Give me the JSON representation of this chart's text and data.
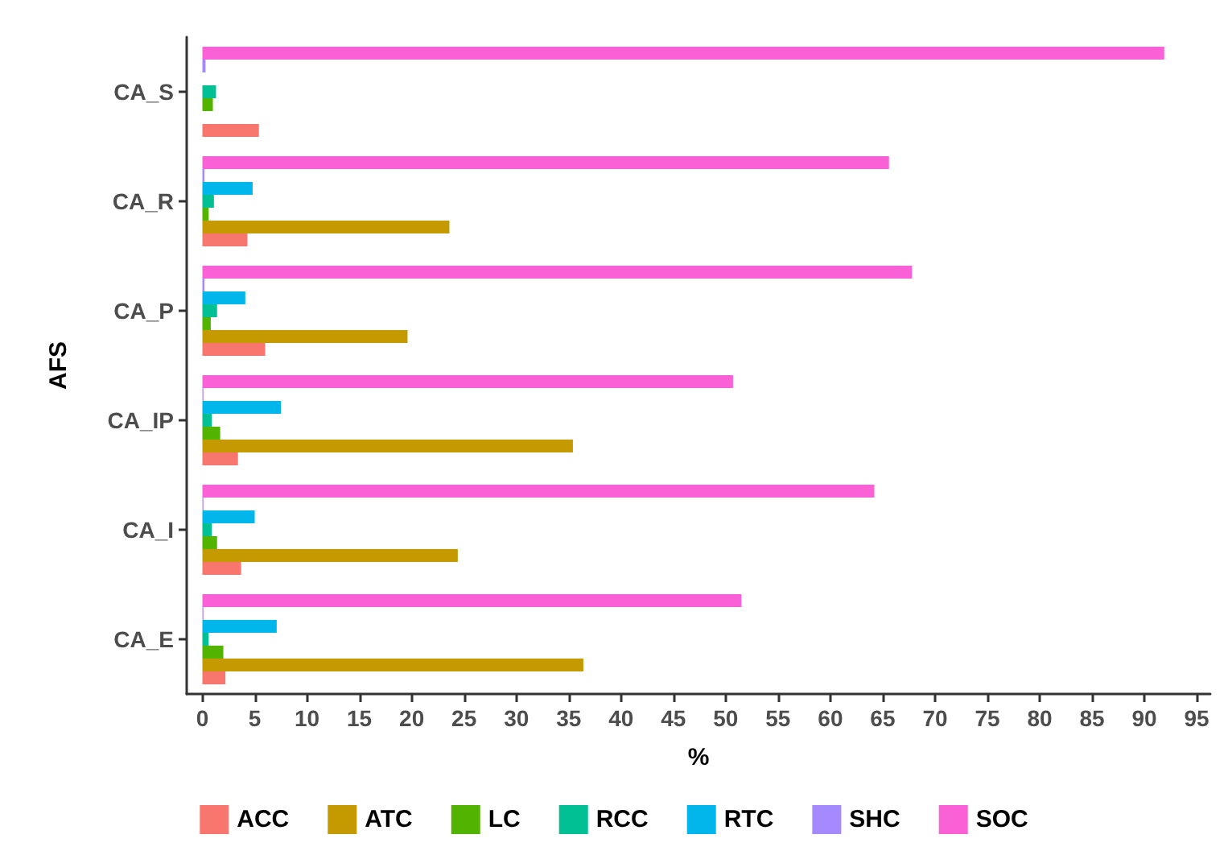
{
  "chart_data": {
    "type": "bar",
    "orientation": "horizontal",
    "xlabel": "%",
    "ylabel": "AFS",
    "categories": [
      "CA_S",
      "CA_R",
      "CA_P",
      "CA_IP",
      "CA_I",
      "CA_E"
    ],
    "series": [
      {
        "name": "ACC",
        "color": "#f8766d",
        "values": [
          5.4,
          4.3,
          6.0,
          3.4,
          3.7,
          2.2
        ]
      },
      {
        "name": "ATC",
        "color": "#c49a00",
        "values": [
          0,
          23.6,
          19.6,
          35.4,
          24.4,
          36.4
        ]
      },
      {
        "name": "LC",
        "color": "#53b400",
        "values": [
          1.0,
          0.6,
          0.8,
          1.7,
          1.4,
          2.0
        ]
      },
      {
        "name": "RCC",
        "color": "#00c094",
        "values": [
          1.3,
          1.1,
          1.4,
          0.9,
          0.9,
          0.6
        ]
      },
      {
        "name": "RTC",
        "color": "#00b6eb",
        "values": [
          0,
          4.8,
          4.1,
          7.5,
          5.0,
          7.1
        ]
      },
      {
        "name": "SHC",
        "color": "#a58aff",
        "values": [
          0.3,
          0.2,
          0.2,
          0.1,
          0.1,
          0.1
        ]
      },
      {
        "name": "SOC",
        "color": "#fb61d7",
        "values": [
          91.9,
          65.6,
          67.8,
          50.7,
          64.2,
          51.5
        ]
      }
    ],
    "xlim": [
      -1.5,
      96.3
    ],
    "xticks": [
      0,
      5,
      10,
      15,
      20,
      25,
      30,
      35,
      40,
      45,
      50,
      55,
      60,
      65,
      70,
      75,
      80,
      85,
      90,
      95
    ],
    "grid": false,
    "legend": "bottom"
  }
}
